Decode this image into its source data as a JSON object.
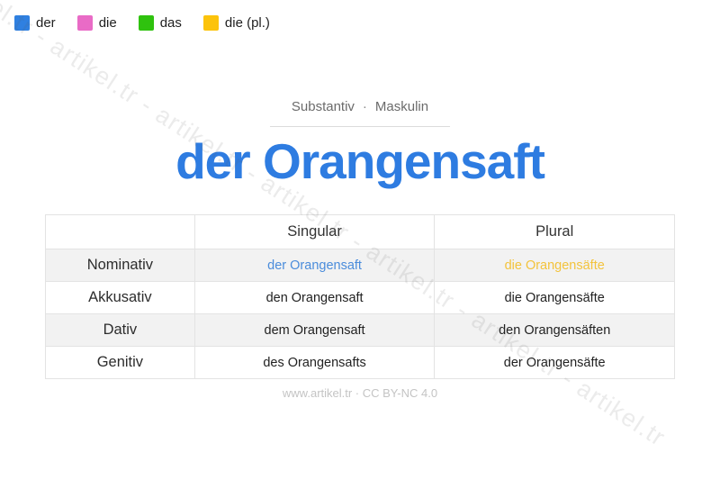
{
  "legend": {
    "items": [
      {
        "label": "der",
        "color": "#2f80e1"
      },
      {
        "label": "die",
        "color": "#e96bc6"
      },
      {
        "label": "das",
        "color": "#2fc20e"
      },
      {
        "label": "die (pl.)",
        "color": "#fcc30b"
      }
    ]
  },
  "header": {
    "word_type": "Substantiv",
    "separator": "·",
    "gender": "Maskulin",
    "title": "der Orangensaft",
    "title_color": "#2e7ce1"
  },
  "table": {
    "columns": {
      "case": "",
      "singular": "Singular",
      "plural": "Plural"
    },
    "rows": [
      {
        "case": "Nominativ",
        "singular": "der Orangensaft",
        "plural": "die Orangensäfte",
        "singular_color": "#4a8cdb",
        "plural_color": "#f3c33c"
      },
      {
        "case": "Akkusativ",
        "singular": "den Orangensaft",
        "plural": "die Orangensäfte",
        "singular_color": "#222222",
        "plural_color": "#222222"
      },
      {
        "case": "Dativ",
        "singular": "dem Orangensaft",
        "plural": "den Orangensäften",
        "singular_color": "#222222",
        "plural_color": "#222222"
      },
      {
        "case": "Genitiv",
        "singular": "des Orangensafts",
        "plural": "der Orangensäfte",
        "singular_color": "#222222",
        "plural_color": "#222222"
      }
    ]
  },
  "footer": {
    "credit": "www.artikel.tr · CC BY-NC 4.0"
  },
  "watermark": {
    "text": "artikel.tr - artikel.tr - artikel.tr - artikel.tr - artikel.tr - artikel.tr - artikel.tr"
  }
}
